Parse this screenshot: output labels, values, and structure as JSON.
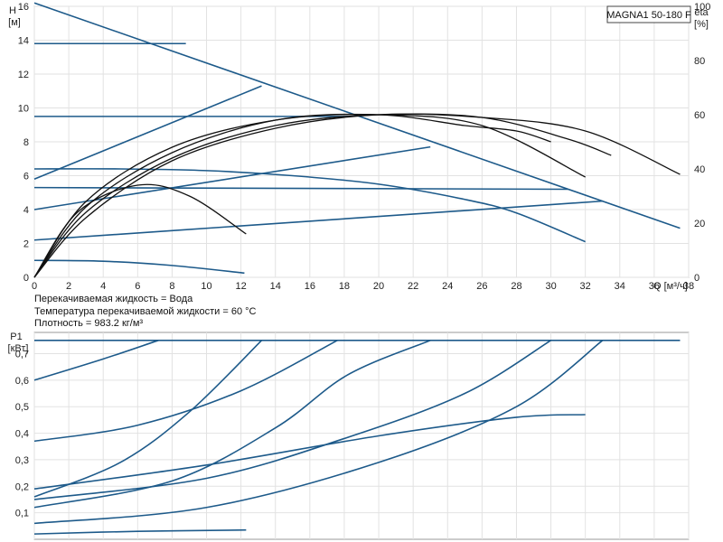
{
  "model_label": "MAGNA1 50-180 F",
  "info_lines": [
    "Перекачиваемая жидкость = Вода",
    "Температура перекачиваемой жидкости = 60 °C",
    "Плотность = 983.2 кг/м³"
  ],
  "colors": {
    "curve": "#1d5a8a",
    "eta": "#111111",
    "grid": "#e2e2e2"
  },
  "chart_data": [
    {
      "type": "line",
      "x_label": "Q [м³/ч]",
      "y_label_line1": "H",
      "y_label_line2": "[м]",
      "y2_label_line1": "eta",
      "y2_label_line2": "[%]",
      "xlim": [
        0,
        38
      ],
      "ylim": [
        0,
        16
      ],
      "y2lim": [
        0,
        100
      ],
      "x_ticks": [
        0,
        2,
        4,
        6,
        8,
        10,
        12,
        14,
        16,
        18,
        20,
        22,
        24,
        26,
        28,
        30,
        32,
        34,
        36,
        38
      ],
      "y_ticks": [
        0,
        2,
        4,
        6,
        8,
        10,
        12,
        14,
        16
      ],
      "y2_ticks": [
        0,
        20,
        40,
        60,
        80,
        100
      ],
      "grid": true,
      "head_series": [
        {
          "points": [
            [
              0,
              16.2
            ],
            [
              37.5,
              2.9
            ]
          ]
        },
        {
          "points": [
            [
              0,
              13.8
            ],
            [
              8.8,
              13.8
            ]
          ]
        },
        {
          "points": [
            [
              0,
              9.5
            ],
            [
              18.2,
              9.5
            ]
          ]
        },
        {
          "points": [
            [
              0,
              5.3
            ],
            [
              31,
              5.2
            ]
          ]
        },
        {
          "points": [
            [
              0,
              5.8
            ],
            [
              13.2,
              11.3
            ]
          ]
        },
        {
          "points": [
            [
              0,
              4.0
            ],
            [
              23,
              7.7
            ]
          ]
        },
        {
          "points": [
            [
              0,
              2.2
            ],
            [
              33,
              4.5
            ]
          ]
        },
        {
          "points": [
            [
              0,
              6.4
            ],
            [
              5,
              6.4
            ],
            [
              10,
              6.3
            ],
            [
              15,
              6.0
            ],
            [
              20,
              5.5
            ],
            [
              25,
              4.6
            ],
            [
              28,
              3.8
            ],
            [
              32,
              2.1
            ]
          ]
        },
        {
          "points": [
            [
              0,
              1.0
            ],
            [
              4,
              0.95
            ],
            [
              8,
              0.7
            ],
            [
              12.2,
              0.25
            ]
          ]
        }
      ],
      "eta_series": [
        {
          "points": [
            [
              0,
              0
            ],
            [
              3,
              22
            ],
            [
              8,
              43
            ],
            [
              14,
              55
            ],
            [
              20,
              60
            ],
            [
              26,
              59
            ],
            [
              32,
              54
            ],
            [
              37.5,
              38
            ]
          ]
        },
        {
          "points": [
            [
              0,
              0
            ],
            [
              3,
              24
            ],
            [
              8,
              44
            ],
            [
              14,
              56
            ],
            [
              20,
              60
            ],
            [
              26,
              59
            ],
            [
              31,
              51
            ],
            [
              33.5,
              45
            ]
          ]
        },
        {
          "points": [
            [
              0,
              0
            ],
            [
              3,
              26
            ],
            [
              8,
              46
            ],
            [
              14,
              58
            ],
            [
              20,
              60
            ],
            [
              26,
              56
            ],
            [
              32,
              37
            ]
          ]
        },
        {
          "points": [
            [
              0,
              0
            ],
            [
              3,
              28
            ],
            [
              8,
              48
            ],
            [
              14,
              58
            ],
            [
              20,
              60
            ],
            [
              25,
              56
            ],
            [
              28,
              54
            ],
            [
              30,
              50
            ]
          ]
        },
        {
          "points": [
            [
              0,
              0
            ],
            [
              2.5,
              24
            ],
            [
              6,
              34
            ],
            [
              9,
              30
            ],
            [
              12.3,
              16
            ]
          ]
        }
      ]
    },
    {
      "type": "line",
      "y_label_line1": "P1",
      "y_label_line2": "[кВт]",
      "xlim": [
        0,
        38
      ],
      "ylim": [
        0,
        0.78
      ],
      "y_ticks": [
        0.1,
        0.2,
        0.3,
        0.4,
        0.5,
        0.6,
        0.7
      ],
      "y_tick_labels": [
        "0,1",
        "0,2",
        "0,3",
        "0,4",
        "0,5",
        "0,6",
        "0,7"
      ],
      "grid": true,
      "series": [
        {
          "points": [
            [
              0,
              0.75
            ],
            [
              37.5,
              0.75
            ]
          ]
        },
        {
          "points": [
            [
              0,
              0.6
            ],
            [
              4,
              0.68
            ],
            [
              7.2,
              0.75
            ]
          ]
        },
        {
          "points": [
            [
              0,
              0.37
            ],
            [
              6,
              0.43
            ],
            [
              12,
              0.56
            ],
            [
              17.6,
              0.75
            ]
          ]
        },
        {
          "points": [
            [
              0,
              0.16
            ],
            [
              5,
              0.29
            ],
            [
              9,
              0.48
            ],
            [
              13.2,
              0.75
            ]
          ]
        },
        {
          "points": [
            [
              0,
              0.12
            ],
            [
              8,
              0.22
            ],
            [
              14,
              0.42
            ],
            [
              18.2,
              0.62
            ],
            [
              23,
              0.75
            ]
          ]
        },
        {
          "points": [
            [
              0,
              0.19
            ],
            [
              10,
              0.28
            ],
            [
              20,
              0.39
            ],
            [
              28,
              0.46
            ],
            [
              32,
              0.47
            ]
          ]
        },
        {
          "points": [
            [
              0,
              0.15
            ],
            [
              10,
              0.23
            ],
            [
              18,
              0.38
            ],
            [
              25,
              0.55
            ],
            [
              30,
              0.75
            ]
          ]
        },
        {
          "points": [
            [
              0,
              0.06
            ],
            [
              10,
              0.12
            ],
            [
              20,
              0.29
            ],
            [
              28,
              0.5
            ],
            [
              33,
              0.75
            ]
          ]
        },
        {
          "points": [
            [
              0,
              0.02
            ],
            [
              6,
              0.03
            ],
            [
              12.3,
              0.035
            ]
          ]
        }
      ]
    }
  ]
}
